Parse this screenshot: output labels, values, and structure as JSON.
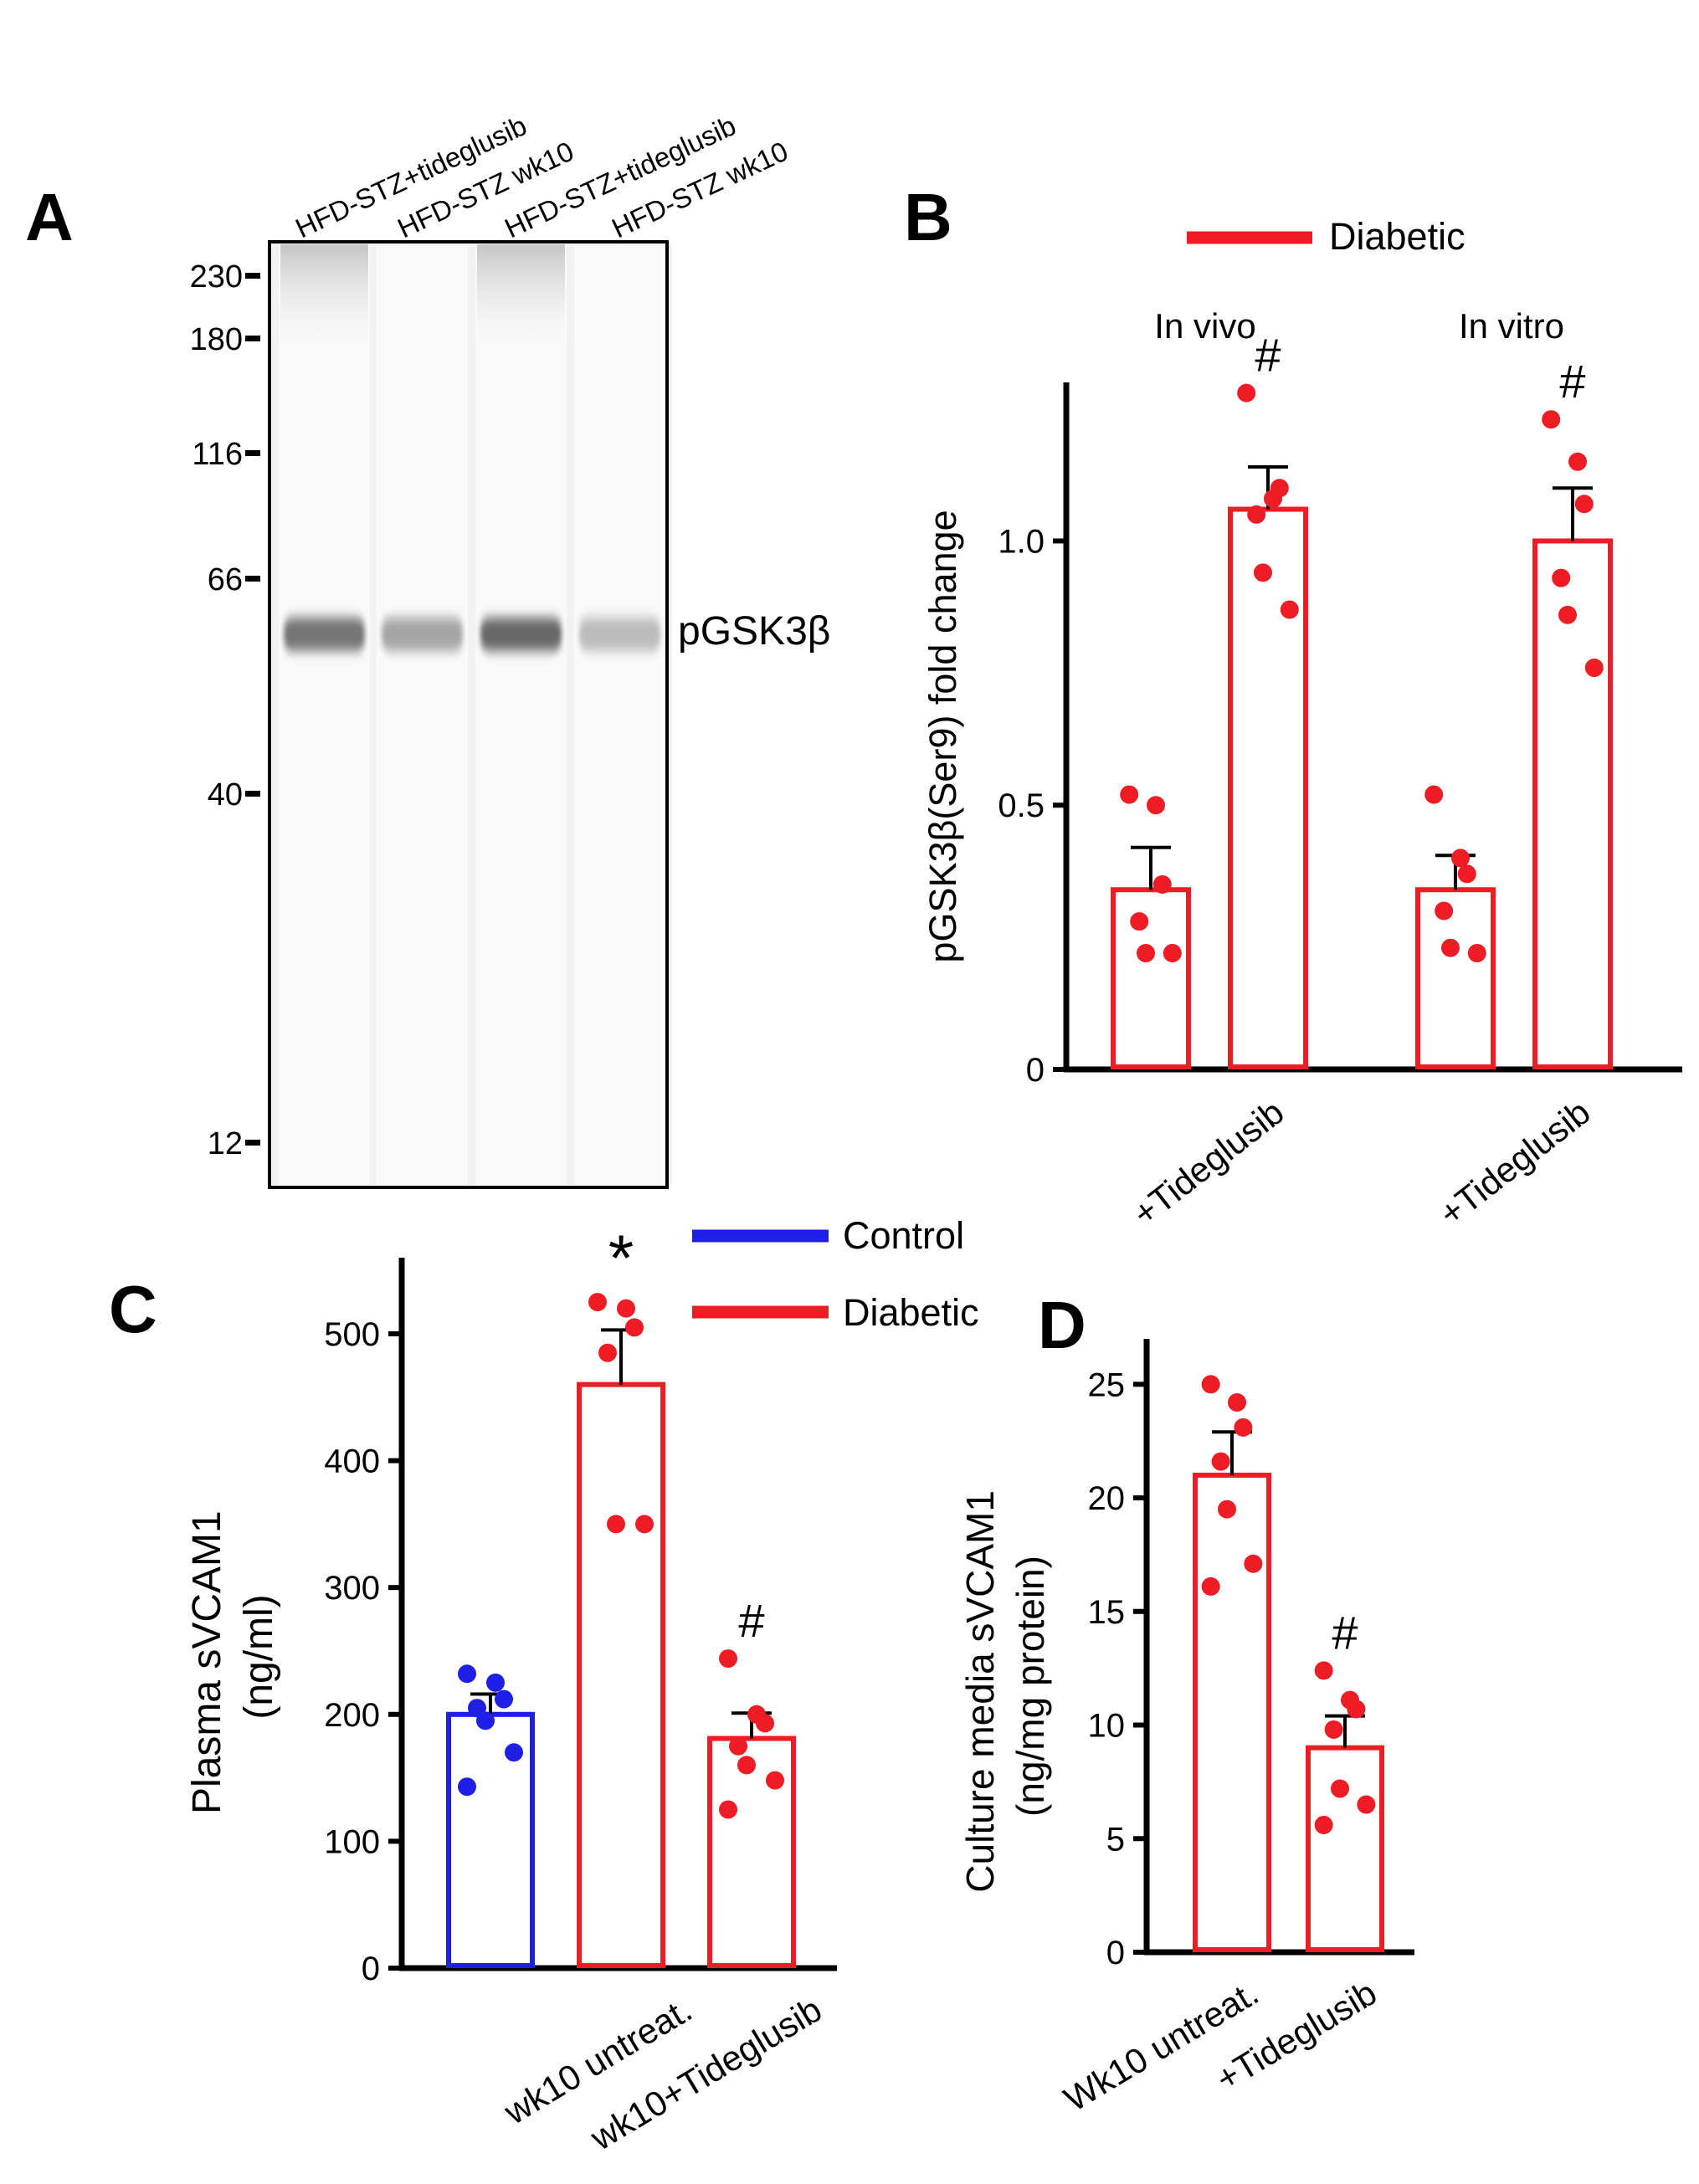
{
  "colors": {
    "control": "#1f1fe6",
    "diabetic": "#ee1c24",
    "axis": "#000000"
  },
  "panel_a": {
    "label": "A",
    "lanes": [
      "HFD-STZ+tideglusib",
      "HFD-STZ wk10",
      "HFD-STZ+tideglusib",
      "HFD-STZ wk10"
    ],
    "mw_markers": [
      "230",
      "180",
      "116",
      "66",
      "40",
      "12"
    ],
    "band_label_main": "pGSK3",
    "band_label_greek": "β",
    "band_intensity": [
      0.68,
      0.42,
      0.74,
      0.3
    ]
  },
  "chart_data": [
    {
      "id": "B",
      "type": "bar",
      "panel_label": "B",
      "title": "",
      "ylabel": "pGSK3β(Ser9) fold change",
      "ylim": [
        0,
        1.3
      ],
      "yticks": [
        "0",
        "0.5",
        "1.0"
      ],
      "legend": [
        {
          "name": "Diabetic",
          "color": "#ee1c24"
        }
      ],
      "groups": [
        "In vivo",
        "In vitro"
      ],
      "categories": [
        "",
        "+Tideglusib",
        "",
        "+Tideglusib"
      ],
      "values": [
        0.34,
        1.06,
        0.34,
        1.0
      ],
      "errors": [
        0.08,
        0.08,
        0.065,
        0.1
      ],
      "significance": [
        "",
        "#",
        "",
        "#"
      ],
      "points": [
        [
          0.52,
          0.5,
          0.35,
          0.28,
          0.22,
          0.22
        ],
        [
          1.28,
          1.08,
          1.1,
          1.05,
          0.94,
          0.87
        ],
        [
          0.52,
          0.4,
          0.37,
          0.3,
          0.23,
          0.22
        ],
        [
          1.23,
          1.15,
          1.07,
          0.93,
          0.86,
          0.76
        ]
      ]
    },
    {
      "id": "C",
      "type": "bar",
      "panel_label": "C",
      "title": "",
      "ylabel_line1": "Plasma sVCAM1",
      "ylabel_line2": "(ng/ml)",
      "ylim": [
        0,
        560
      ],
      "yticks": [
        "0",
        "100",
        "200",
        "300",
        "400",
        "500"
      ],
      "legend": [
        {
          "name": "Control",
          "color": "#1f1fe6"
        },
        {
          "name": "Diabetic",
          "color": "#ee1c24"
        }
      ],
      "categories": [
        "",
        "wk10 untreat.",
        "wk10+Tideglusib"
      ],
      "series_color": [
        "#1f1fe6",
        "#ee1c24",
        "#ee1c24"
      ],
      "values": [
        200,
        460,
        181
      ],
      "errors": [
        16,
        43,
        20
      ],
      "significance": [
        "",
        "*",
        "#"
      ],
      "points": [
        [
          232,
          225,
          212,
          205,
          195,
          170,
          143
        ],
        [
          525,
          520,
          505,
          485,
          350,
          350
        ],
        [
          244,
          200,
          193,
          175,
          160,
          148,
          125
        ]
      ]
    },
    {
      "id": "D",
      "type": "bar",
      "panel_label": "D",
      "title": "",
      "ylabel_line1": "Culture media sVCAM1",
      "ylabel_line2": "(ng/mg protein)",
      "ylim": [
        0,
        27
      ],
      "yticks": [
        "0",
        "5",
        "10",
        "15",
        "20",
        "25"
      ],
      "categories": [
        "Wk10 untreat.",
        "+Tideglusib"
      ],
      "values": [
        21,
        9
      ],
      "errors": [
        1.9,
        1.4
      ],
      "significance": [
        "",
        "#"
      ],
      "points": [
        [
          25,
          24.2,
          23.1,
          21.6,
          19.5,
          17.1,
          16.1
        ],
        [
          12.4,
          11.1,
          10.7,
          9.8,
          7.2,
          6.5,
          5.6
        ]
      ]
    }
  ]
}
